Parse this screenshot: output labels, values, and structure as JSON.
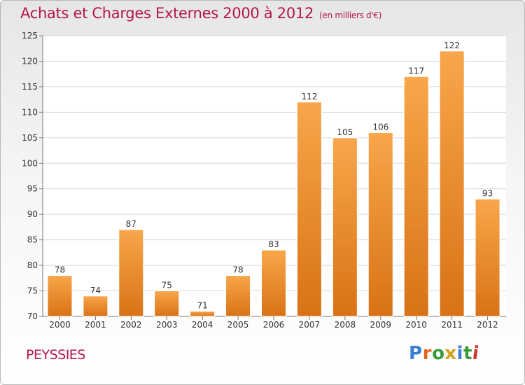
{
  "header": {
    "title": "Achats et Charges Externes 2000 à 2012",
    "subtitle": "(en milliers d'€)"
  },
  "footer": {
    "commune": "PEYSSIES",
    "logo_letters": [
      "P",
      "r",
      "o",
      "x",
      "i",
      "t",
      "i"
    ],
    "logo_colors": [
      "#3a7fd1",
      "#e8641d",
      "#3a9b3a",
      "#d4a017",
      "#3a7fd1",
      "#3a9b3a",
      "#d0342c"
    ]
  },
  "colors": {
    "bar_top": "#f8a64a",
    "bar_bottom": "#d97216",
    "title": "#b5154d",
    "grid": "#d7d7d7"
  },
  "chart_data": {
    "type": "bar",
    "categories": [
      "2000",
      "2001",
      "2002",
      "2003",
      "2004",
      "2005",
      "2006",
      "2007",
      "2008",
      "2009",
      "2010",
      "2011",
      "2012"
    ],
    "values": [
      78,
      74,
      87,
      75,
      71,
      78,
      83,
      112,
      105,
      106,
      117,
      122,
      93
    ],
    "ylim": [
      70,
      125
    ],
    "yticks": [
      70,
      75,
      80,
      85,
      90,
      95,
      100,
      105,
      110,
      115,
      120,
      125
    ],
    "grid": true,
    "title": "Achats et Charges Externes 2000 à 2012",
    "xlabel": "",
    "ylabel": ""
  }
}
